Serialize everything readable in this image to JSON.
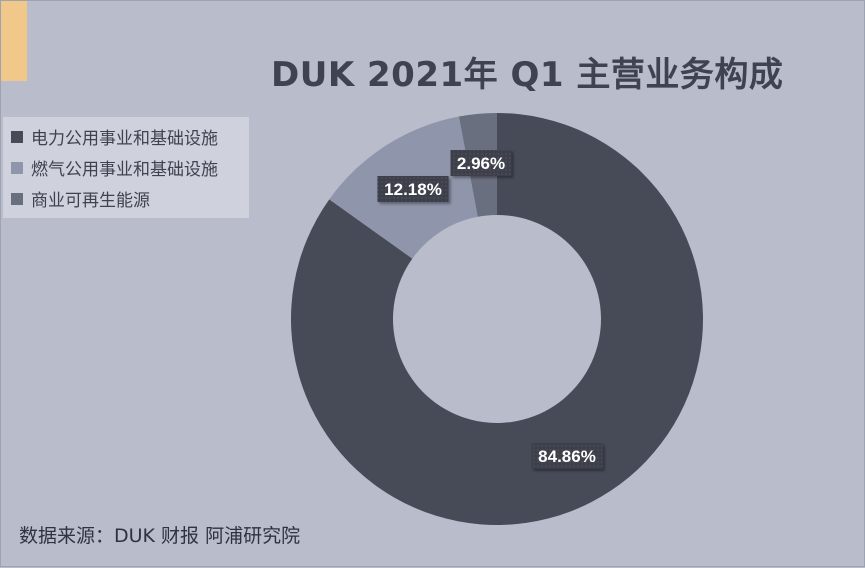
{
  "title": "DUK 2021年 Q1 主营业务构成",
  "source": "数据来源：DUK 财报 阿浦研究院",
  "colors": {
    "background": "#b8bccb",
    "accent": "#f0c98a"
  },
  "chart_data": {
    "type": "pie",
    "title": "DUK 2021年 Q1 主营业务构成",
    "legend_position": "left",
    "donut": true,
    "series": [
      {
        "name": "电力公用事业和基础设施",
        "value": 84.86,
        "label": "84.86%",
        "color": "#474b58"
      },
      {
        "name": "燃气公用事业和基础设施",
        "value": 12.18,
        "label": "12.18%",
        "color": "#8f95aa"
      },
      {
        "name": "商业可再生能源",
        "value": 2.96,
        "label": "2.96%",
        "color": "#6a6f80"
      }
    ]
  }
}
